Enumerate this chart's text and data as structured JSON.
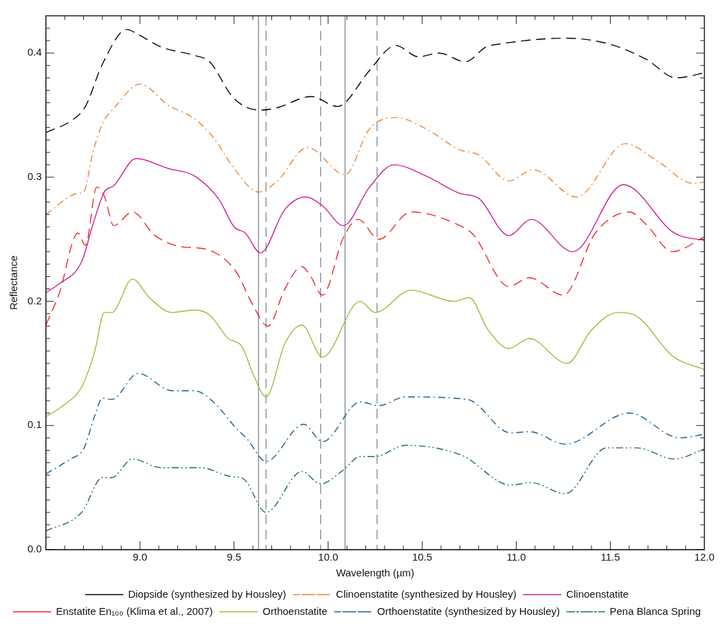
{
  "chart_data": {
    "type": "line",
    "xlabel": "Wavelength (µm)",
    "ylabel": "Reflectance",
    "xlim": [
      8.5,
      12.0
    ],
    "ylim": [
      0,
      0.43
    ],
    "xticks": [
      {
        "value": 8.6,
        "label": null
      },
      {
        "value": 8.7,
        "label": null
      },
      {
        "value": 8.8,
        "label": null
      },
      {
        "value": 8.9,
        "label": null
      },
      {
        "value": 9,
        "label": "9.0"
      },
      {
        "value": 9.1,
        "label": null
      },
      {
        "value": 9.2,
        "label": null
      },
      {
        "value": 9.3,
        "label": null
      },
      {
        "value": 9.4,
        "label": null
      },
      9.5,
      {
        "value": 9.6,
        "label": null
      },
      {
        "value": 9.7,
        "label": null
      },
      {
        "value": 9.8,
        "label": null
      },
      {
        "value": 9.9,
        "label": null
      },
      {
        "value": 10,
        "label": "10.0"
      },
      {
        "value": 10.1,
        "label": null
      },
      {
        "value": 10.2,
        "label": null
      },
      {
        "value": 10.3,
        "label": null
      },
      {
        "value": 10.4,
        "label": null
      },
      10.5,
      {
        "value": 10.6,
        "label": null
      },
      {
        "value": 10.7,
        "label": null
      },
      {
        "value": 10.8,
        "label": null
      },
      {
        "value": 10.9,
        "label": null
      },
      {
        "value": 11,
        "label": "11.0"
      },
      {
        "value": 11.1,
        "label": null
      },
      {
        "value": 11.2,
        "label": null
      },
      {
        "value": 11.3,
        "label": null
      },
      {
        "value": 11.4,
        "label": null
      },
      11.5,
      {
        "value": 11.6,
        "label": null
      },
      {
        "value": 11.7,
        "label": null
      },
      {
        "value": 11.8,
        "label": null
      },
      {
        "value": 11.9,
        "label": null
      },
      {
        "value": 12,
        "label": "12.0"
      }
    ],
    "yticks": [
      {
        "value": 0,
        "label": "0.0"
      },
      {
        "value": 0.01,
        "label": null
      },
      {
        "value": 0.02,
        "label": null
      },
      {
        "value": 0.03,
        "label": null
      },
      {
        "value": 0.04,
        "label": null
      },
      {
        "value": 0.05,
        "label": null
      },
      {
        "value": 0.06,
        "label": null
      },
      {
        "value": 0.07,
        "label": null
      },
      {
        "value": 0.08,
        "label": null
      },
      {
        "value": 0.09,
        "label": null
      },
      0.1,
      {
        "value": 0.11,
        "label": null
      },
      {
        "value": 0.12,
        "label": null
      },
      {
        "value": 0.13,
        "label": null
      },
      {
        "value": 0.14,
        "label": null
      },
      {
        "value": 0.15,
        "label": null
      },
      {
        "value": 0.16,
        "label": null
      },
      {
        "value": 0.17,
        "label": null
      },
      {
        "value": 0.18,
        "label": null
      },
      {
        "value": 0.19,
        "label": null
      },
      0.2,
      {
        "value": 0.21,
        "label": null
      },
      {
        "value": 0.22,
        "label": null
      },
      {
        "value": 0.23,
        "label": null
      },
      {
        "value": 0.24,
        "label": null
      },
      {
        "value": 0.25,
        "label": null
      },
      {
        "value": 0.26,
        "label": null
      },
      {
        "value": 0.27,
        "label": null
      },
      {
        "value": 0.28,
        "label": null
      },
      {
        "value": 0.29,
        "label": null
      },
      0.3,
      {
        "value": 0.31,
        "label": null
      },
      {
        "value": 0.32,
        "label": null
      },
      {
        "value": 0.33,
        "label": null
      },
      {
        "value": 0.34,
        "label": null
      },
      {
        "value": 0.35,
        "label": null
      },
      {
        "value": 0.36,
        "label": null
      },
      {
        "value": 0.37,
        "label": null
      },
      {
        "value": 0.38,
        "label": null
      },
      {
        "value": 0.39,
        "label": null
      },
      0.4,
      {
        "value": 0.41,
        "label": null
      },
      {
        "value": 0.42,
        "label": null
      }
    ],
    "grid": false,
    "legend": "bottom",
    "marker": "none",
    "ref_lines": [
      {
        "axis": "x",
        "value": 9.63,
        "color": "#7a8898",
        "line_style": "solid"
      },
      {
        "axis": "x",
        "value": 10.09,
        "color": "#7a8898",
        "line_style": "solid"
      },
      {
        "axis": "x",
        "value": 9.67,
        "color": "#7a8898",
        "line_style": "dashed"
      },
      {
        "axis": "x",
        "value": 9.96,
        "color": "#7a8898",
        "line_style": "dashed"
      },
      {
        "axis": "x",
        "value": 10.26,
        "color": "#7a8898",
        "line_style": "dashed"
      }
    ],
    "series": [
      {
        "name": "Diopside (synthesized by Housley)",
        "color": "#000000",
        "line_style": "dashed",
        "x": [
          8.5,
          8.64,
          8.71,
          8.8,
          8.93,
          8.99,
          9.11,
          9.29,
          9.37,
          9.49,
          9.57,
          9.64,
          9.73,
          9.91,
          10.05,
          10.09,
          10.22,
          10.36,
          10.48,
          10.59,
          10.73,
          10.84,
          10.9,
          11.26,
          11.5,
          11.69,
          11.85,
          12.0
        ],
        "values": [
          0.336,
          0.346,
          0.357,
          0.391,
          0.419,
          0.415,
          0.405,
          0.398,
          0.393,
          0.365,
          0.356,
          0.354,
          0.356,
          0.365,
          0.357,
          0.36,
          0.386,
          0.406,
          0.397,
          0.4,
          0.393,
          0.405,
          0.407,
          0.412,
          0.407,
          0.395,
          0.38,
          0.384
        ]
      },
      {
        "name": "Clinoenstatite (synthesized by Housley)",
        "color": "#f07f2d",
        "line_style": "dashdot",
        "x": [
          8.5,
          8.67,
          8.7,
          8.75,
          8.8,
          8.87,
          9.0,
          9.15,
          9.29,
          9.39,
          9.51,
          9.63,
          9.73,
          9.89,
          10.09,
          10.22,
          10.36,
          10.52,
          10.7,
          10.8,
          10.96,
          11.09,
          11.32,
          11.58,
          11.75,
          11.94,
          12.0
        ],
        "values": [
          0.27,
          0.287,
          0.288,
          0.32,
          0.343,
          0.357,
          0.375,
          0.358,
          0.347,
          0.332,
          0.305,
          0.288,
          0.297,
          0.324,
          0.302,
          0.339,
          0.348,
          0.339,
          0.322,
          0.318,
          0.297,
          0.306,
          0.284,
          0.327,
          0.313,
          0.295,
          0.296
        ]
      },
      {
        "name": "Clinoenstatite",
        "color": "#cc1f8f",
        "line_style": "solid",
        "x": [
          8.5,
          8.57,
          8.69,
          8.75,
          8.81,
          8.86,
          8.98,
          9.15,
          9.29,
          9.42,
          9.5,
          9.56,
          9.64,
          9.77,
          9.88,
          9.97,
          10.08,
          10.22,
          10.35,
          10.52,
          10.7,
          10.8,
          10.96,
          11.08,
          11.3,
          11.57,
          11.84,
          12.0
        ],
        "values": [
          0.207,
          0.214,
          0.232,
          0.262,
          0.288,
          0.293,
          0.315,
          0.307,
          0.301,
          0.282,
          0.26,
          0.255,
          0.239,
          0.274,
          0.284,
          0.277,
          0.261,
          0.292,
          0.31,
          0.301,
          0.287,
          0.283,
          0.253,
          0.266,
          0.24,
          0.294,
          0.255,
          0.249
        ]
      },
      {
        "name": "Enstatite En₁₀₀ (Klima et al., 2007)",
        "color": "#ee2424",
        "line_style": "dashed",
        "x": [
          8.5,
          8.57,
          8.67,
          8.71,
          8.77,
          8.81,
          8.86,
          8.96,
          9.08,
          9.22,
          9.35,
          9.51,
          9.6,
          9.68,
          9.77,
          9.86,
          9.9,
          9.97,
          10.08,
          10.16,
          10.27,
          10.44,
          10.7,
          10.77,
          10.96,
          11.07,
          11.25,
          11.42,
          11.6,
          11.69,
          11.83,
          12.0
        ],
        "values": [
          0.181,
          0.206,
          0.255,
          0.245,
          0.292,
          0.285,
          0.261,
          0.272,
          0.253,
          0.244,
          0.242,
          0.224,
          0.197,
          0.18,
          0.21,
          0.228,
          0.222,
          0.205,
          0.251,
          0.266,
          0.25,
          0.272,
          0.261,
          0.254,
          0.212,
          0.219,
          0.205,
          0.255,
          0.272,
          0.262,
          0.24,
          0.252
        ]
      },
      {
        "name": "Orthoenstatite",
        "color": "#92c03c",
        "line_style": "solid",
        "x": [
          8.5,
          8.6,
          8.69,
          8.76,
          8.81,
          8.85,
          8.96,
          9.05,
          9.17,
          9.29,
          9.37,
          9.47,
          9.54,
          9.6,
          9.67,
          9.77,
          9.86,
          9.97,
          10.17,
          10.25,
          10.44,
          10.67,
          10.75,
          10.85,
          10.96,
          11.07,
          11.27,
          11.4,
          11.54,
          11.65,
          11.83,
          12.0
        ],
        "values": [
          0.107,
          0.117,
          0.131,
          0.16,
          0.191,
          0.191,
          0.218,
          0.203,
          0.191,
          0.193,
          0.189,
          0.17,
          0.164,
          0.142,
          0.123,
          0.166,
          0.181,
          0.155,
          0.2,
          0.191,
          0.209,
          0.2,
          0.203,
          0.177,
          0.162,
          0.17,
          0.15,
          0.177,
          0.191,
          0.187,
          0.156,
          0.145
        ]
      },
      {
        "name": "Orthoenstatite (synthesized by Housley)",
        "color": "#185a8a",
        "line_style": "dashdot",
        "x": [
          8.5,
          8.63,
          8.7,
          8.76,
          8.8,
          8.85,
          8.99,
          9.17,
          9.29,
          9.39,
          9.51,
          9.57,
          9.67,
          9.87,
          9.97,
          10.17,
          10.27,
          10.41,
          10.74,
          10.97,
          11.07,
          11.26,
          11.6,
          11.87,
          12.0
        ],
        "values": [
          0.061,
          0.073,
          0.081,
          0.108,
          0.122,
          0.121,
          0.142,
          0.128,
          0.128,
          0.119,
          0.098,
          0.089,
          0.071,
          0.101,
          0.087,
          0.119,
          0.116,
          0.123,
          0.121,
          0.094,
          0.095,
          0.085,
          0.11,
          0.09,
          0.093
        ]
      },
      {
        "name": "Pena Blanca Spring",
        "color": "#1e6b3a",
        "line_style": "dashdotdot",
        "x": [
          8.5,
          8.69,
          8.8,
          8.85,
          8.96,
          9.11,
          9.32,
          9.48,
          9.55,
          9.67,
          9.86,
          9.96,
          10.08,
          10.17,
          10.25,
          10.41,
          10.71,
          10.97,
          11.08,
          11.26,
          11.48,
          11.64,
          11.84,
          12.0
        ],
        "values": [
          0.015,
          0.03,
          0.058,
          0.058,
          0.073,
          0.066,
          0.066,
          0.059,
          0.057,
          0.03,
          0.063,
          0.053,
          0.064,
          0.075,
          0.075,
          0.084,
          0.076,
          0.052,
          0.054,
          0.045,
          0.082,
          0.082,
          0.073,
          0.081
        ]
      }
    ]
  }
}
